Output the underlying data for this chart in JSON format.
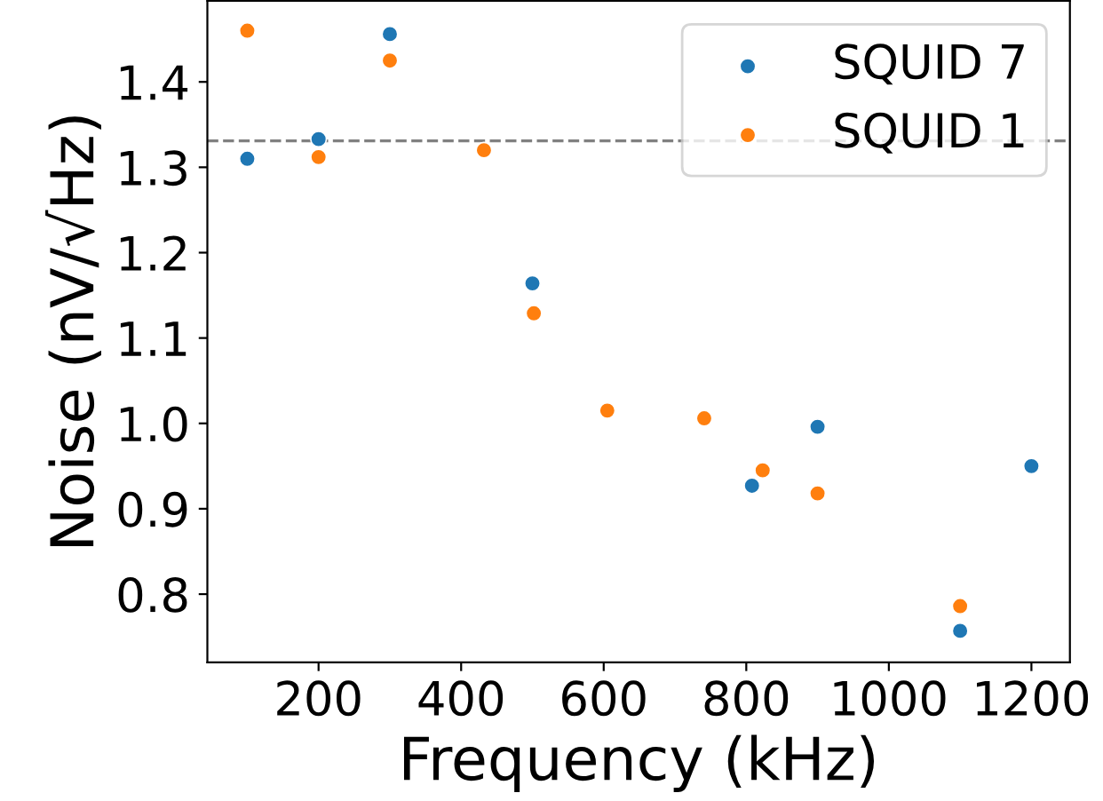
{
  "chart_data": {
    "type": "scatter",
    "xlabel": "Frequency (kHz)",
    "ylabel": "Noise (nV/√Hz)",
    "xlim": [
      44,
      1254
    ],
    "ylim": [
      0.72,
      1.495
    ],
    "xticks": [
      200,
      400,
      600,
      800,
      1000,
      1200
    ],
    "yticks": [
      0.8,
      0.9,
      {
        "value": 1,
        "label": "1.0"
      },
      1.1,
      1.2,
      1.3,
      1.4
    ],
    "legend": "top right",
    "marker": "circle",
    "grid": false,
    "series": [
      {
        "name": "SQUID 7",
        "color": "#1f77b4",
        "x": [
          100,
          200,
          300,
          500,
          808,
          900,
          1100,
          1200
        ],
        "values": [
          1.31,
          1.333,
          1.456,
          1.164,
          0.927,
          0.996,
          0.757,
          0.95
        ]
      },
      {
        "name": "SQUID 1",
        "color": "#ff7f0e",
        "x": [
          100,
          200,
          300,
          432,
          502,
          605,
          741,
          823,
          900,
          1100
        ],
        "values": [
          1.46,
          1.312,
          1.425,
          1.32,
          1.129,
          1.015,
          1.006,
          0.945,
          0.918,
          0.786
        ]
      }
    ],
    "ref_lines": [
      {
        "axis": "y",
        "value": 1.331,
        "color": "#808080",
        "line_style": "dashed"
      }
    ]
  }
}
